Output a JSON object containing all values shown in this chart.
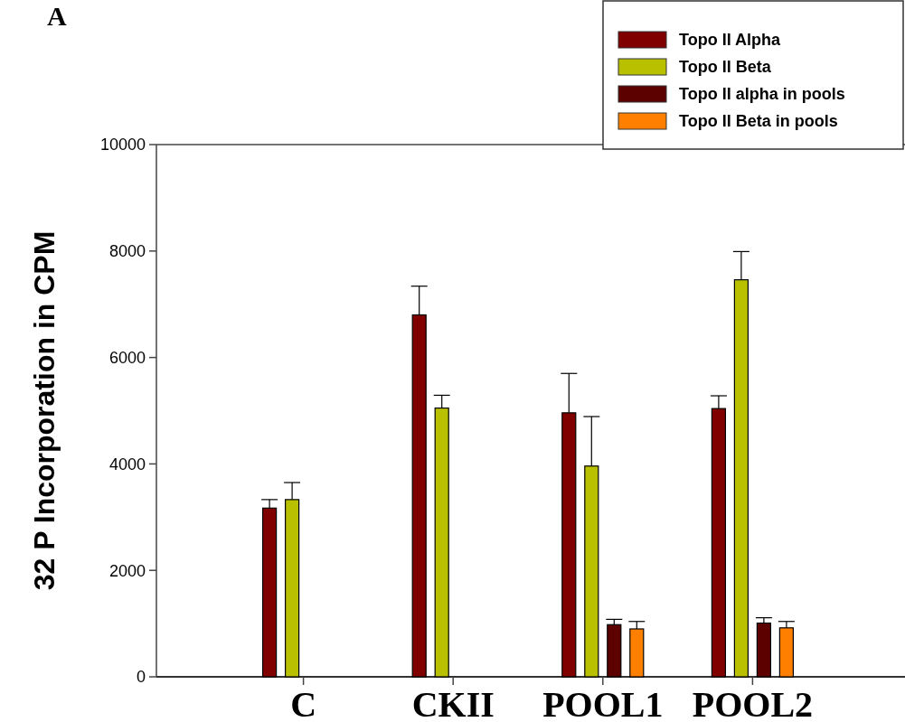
{
  "chart_data": {
    "type": "bar",
    "ylabel": "32 P Incorporation in CPM",
    "annotations": [
      "A"
    ],
    "categories": [
      "C",
      "CKII",
      "POOL1",
      "POOL2"
    ],
    "series": [
      {
        "name": "Topo II Alpha",
        "color": "#800000",
        "values": [
          3170,
          6800,
          4960,
          5040
        ],
        "errors": [
          [
            3170,
            3330
          ],
          [
            6800,
            7340
          ],
          [
            4960,
            5700
          ],
          [
            5040,
            5280
          ]
        ]
      },
      {
        "name": "Topo II Beta",
        "color": "#b8c000",
        "values": [
          3330,
          5050,
          3960,
          7460
        ],
        "errors": [
          [
            3330,
            3650
          ],
          [
            5050,
            5290
          ],
          [
            3960,
            4890
          ],
          [
            7460,
            7990
          ]
        ]
      },
      {
        "name": "Topo II alpha in pools",
        "color": "#5c0000",
        "values": [
          null,
          null,
          980,
          1010
        ],
        "errors": [
          null,
          null,
          [
            980,
            1080
          ],
          [
            1010,
            1110
          ]
        ]
      },
      {
        "name": "Topo II Beta in pools",
        "color": "#ff8000",
        "values": [
          null,
          null,
          900,
          920
        ],
        "errors": [
          null,
          null,
          [
            900,
            1040
          ],
          [
            920,
            1040
          ]
        ]
      }
    ],
    "ylim": [
      0,
      10000
    ],
    "yticks": [
      0,
      2000,
      4000,
      6000,
      8000,
      10000
    ],
    "legend": "top right"
  }
}
